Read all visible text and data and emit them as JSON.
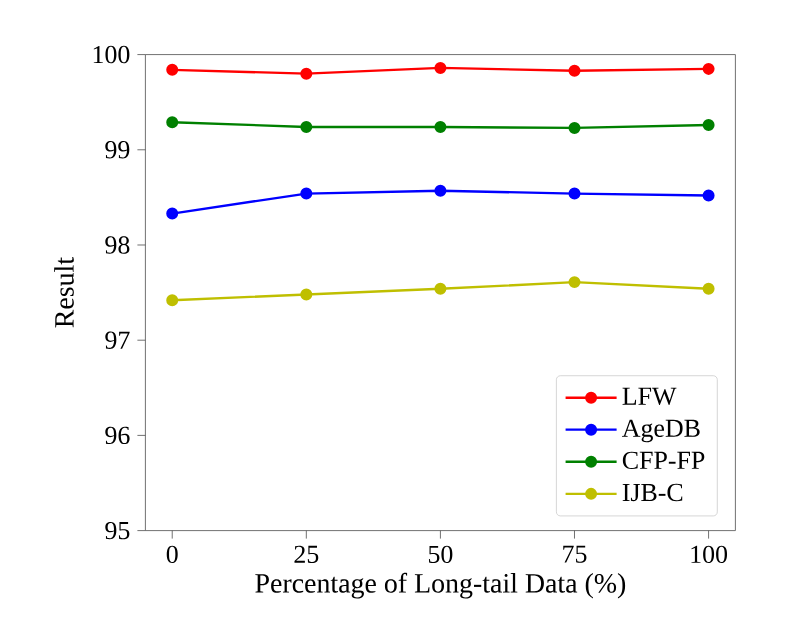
{
  "chart_data": {
    "type": "line",
    "xlabel": "Percentage of Long-tail Data (%)",
    "ylabel": "Result",
    "x": [
      0,
      25,
      50,
      75,
      100
    ],
    "series": [
      {
        "name": "LFW",
        "color": "#ff0000",
        "values": [
          99.84,
          99.8,
          99.86,
          99.83,
          99.85
        ]
      },
      {
        "name": "AgeDB",
        "color": "#0000ff",
        "values": [
          98.33,
          98.54,
          98.57,
          98.54,
          98.52
        ]
      },
      {
        "name": "CFP-FP",
        "color": "#008000",
        "values": [
          99.29,
          99.24,
          99.24,
          99.23,
          99.26
        ]
      },
      {
        "name": "IJB-C",
        "color": "#bfbf00",
        "values": [
          97.42,
          97.48,
          97.54,
          97.61,
          97.54
        ]
      }
    ],
    "xlim": [
      -5,
      105
    ],
    "xticks": [
      0,
      25,
      50,
      75,
      100
    ],
    "ylim": [
      95,
      100
    ],
    "yticks": [
      95,
      96,
      97,
      98,
      99,
      100
    ],
    "legend": "bottom right",
    "marker": "circle",
    "line_style": "solid",
    "grid": false
  }
}
